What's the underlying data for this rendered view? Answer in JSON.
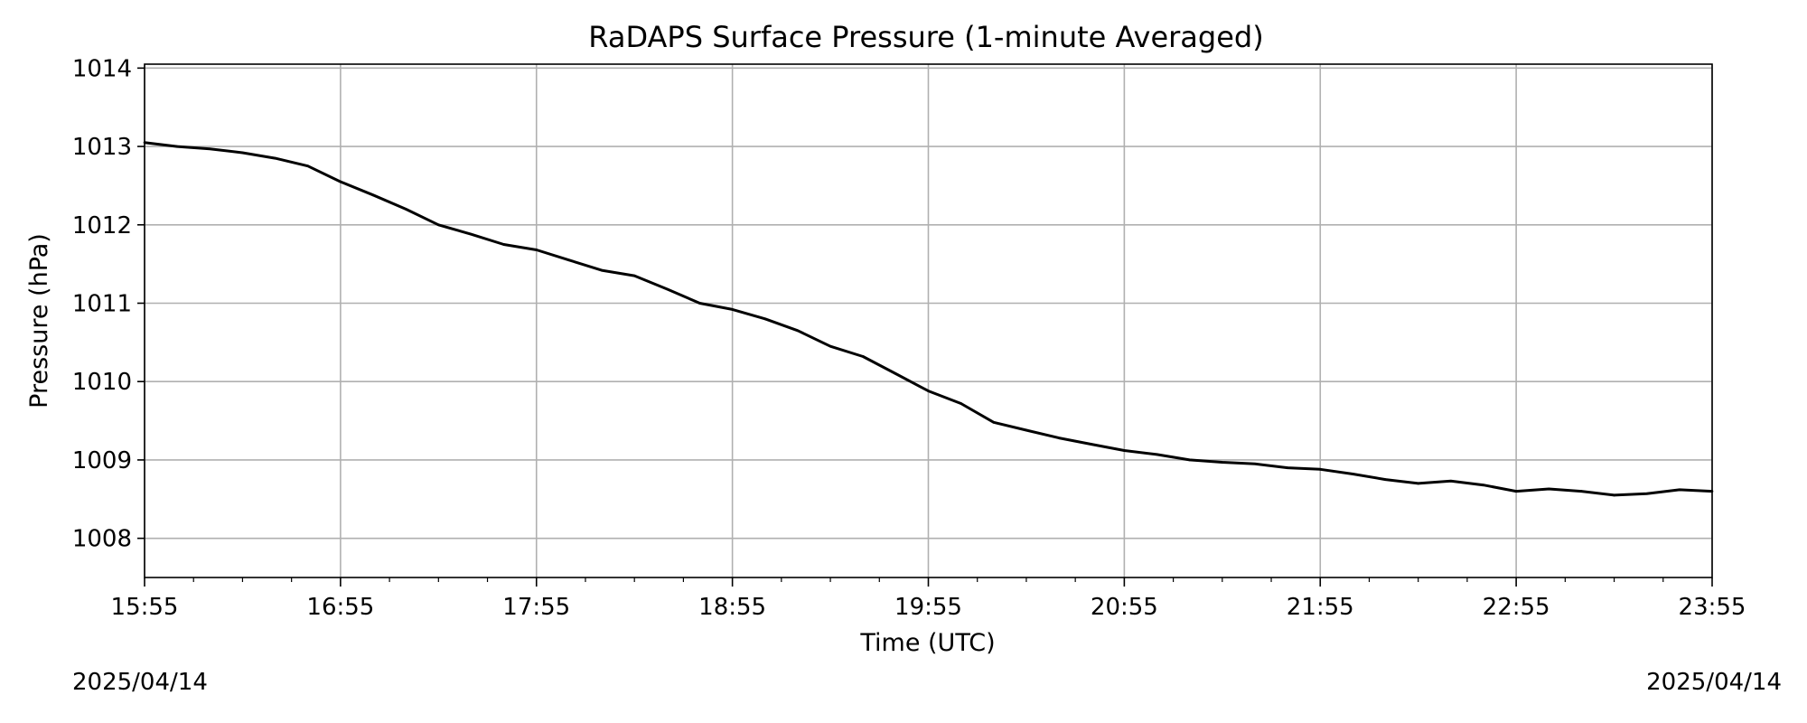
{
  "chart_data": {
    "type": "line",
    "title": "RaDAPS Surface Pressure (1-minute Averaged)",
    "xlabel": "Time (UTC)",
    "ylabel": "Pressure (hPa)",
    "x_ticks": [
      "15:55",
      "16:55",
      "17:55",
      "18:55",
      "19:55",
      "20:55",
      "21:55",
      "22:55",
      "23:55"
    ],
    "y_ticks": [
      1008,
      1009,
      1010,
      1011,
      1012,
      1013,
      1014
    ],
    "xlim": [
      "15:55",
      "23:55"
    ],
    "ylim": [
      1007.5,
      1014.05
    ],
    "grid": true,
    "line_color": "#000000",
    "grid_color": "#b0b0b0",
    "series": [
      {
        "x": [
          "15:55",
          "16:05",
          "16:15",
          "16:25",
          "16:35",
          "16:45",
          "16:55",
          "17:05",
          "17:15",
          "17:25",
          "17:35",
          "17:45",
          "17:55",
          "18:05",
          "18:15",
          "18:25",
          "18:35",
          "18:45",
          "18:55",
          "19:05",
          "19:15",
          "19:25",
          "19:35",
          "19:45",
          "19:55",
          "20:05",
          "20:15",
          "20:25",
          "20:35",
          "20:45",
          "20:55",
          "21:05",
          "21:15",
          "21:25",
          "21:35",
          "21:45",
          "21:55",
          "22:05",
          "22:15",
          "22:25",
          "22:35",
          "22:45",
          "22:55",
          "23:05",
          "23:15",
          "23:25",
          "23:35",
          "23:45",
          "23:55"
        ],
        "values": [
          1013.05,
          1013.0,
          1012.97,
          1012.92,
          1012.85,
          1012.75,
          1012.55,
          1012.38,
          1012.2,
          1012.0,
          1011.88,
          1011.75,
          1011.68,
          1011.55,
          1011.42,
          1011.35,
          1011.18,
          1011.0,
          1010.92,
          1010.8,
          1010.65,
          1010.45,
          1010.32,
          1010.1,
          1009.88,
          1009.72,
          1009.48,
          1009.38,
          1009.28,
          1009.2,
          1009.12,
          1009.07,
          1009.0,
          1008.97,
          1008.95,
          1008.9,
          1008.88,
          1008.82,
          1008.75,
          1008.7,
          1008.73,
          1008.68,
          1008.6,
          1008.63,
          1008.6,
          1008.55,
          1008.57,
          1008.62,
          1008.6
        ]
      }
    ]
  },
  "footer": {
    "date_left": "2025/04/14",
    "date_right": "2025/04/14"
  }
}
